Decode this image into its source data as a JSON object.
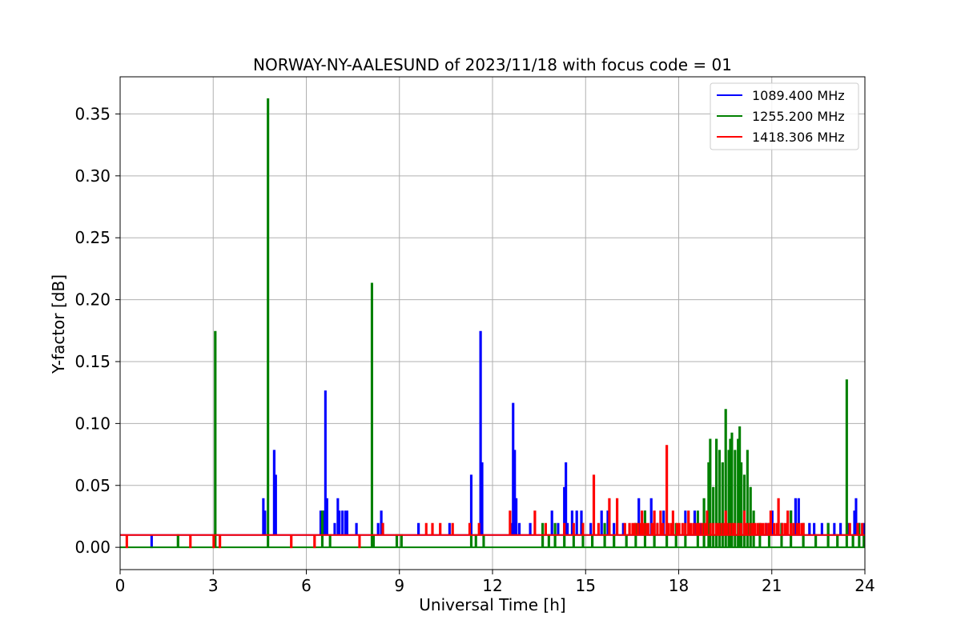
{
  "chart_data": {
    "type": "line",
    "title": "NORWAY-NY-AALESUND of 2023/11/18 with focus code = 01",
    "xlabel": "Universal Time [h]",
    "ylabel": "Y-factor [dB]",
    "xlim": [
      0,
      24
    ],
    "ylim": [
      -0.018,
      0.38
    ],
    "xticks": [
      0,
      3,
      6,
      9,
      12,
      15,
      18,
      21,
      24
    ],
    "xtick_labels": [
      "0",
      "3",
      "6",
      "9",
      "12",
      "15",
      "18",
      "21",
      "24"
    ],
    "yticks": [
      0.0,
      0.05,
      0.1,
      0.15,
      0.2,
      0.25,
      0.3,
      0.35
    ],
    "ytick_labels": [
      "0.00",
      "0.05",
      "0.10",
      "0.15",
      "0.20",
      "0.25",
      "0.30",
      "0.35"
    ],
    "grid": true,
    "legend_position": "top-right",
    "series": [
      {
        "name": "1089.400 MHz",
        "color": "#0000ff",
        "baseline": 0.01,
        "spikes": [
          [
            1.0,
            0.0
          ],
          [
            4.6,
            0.039
          ],
          [
            4.65,
            0.029
          ],
          [
            4.95,
            0.078
          ],
          [
            5.0,
            0.058
          ],
          [
            6.45,
            0.029
          ],
          [
            6.55,
            0.029
          ],
          [
            6.6,
            0.126
          ],
          [
            6.65,
            0.039
          ],
          [
            6.9,
            0.019
          ],
          [
            7.0,
            0.039
          ],
          [
            7.05,
            0.029
          ],
          [
            7.15,
            0.029
          ],
          [
            7.25,
            0.029
          ],
          [
            7.3,
            0.029
          ],
          [
            7.6,
            0.019
          ],
          [
            8.3,
            0.019
          ],
          [
            8.4,
            0.029
          ],
          [
            8.45,
            0.019
          ],
          [
            9.6,
            0.019
          ],
          [
            10.6,
            0.019
          ],
          [
            11.3,
            0.058
          ],
          [
            11.6,
            0.174
          ],
          [
            11.65,
            0.068
          ],
          [
            12.6,
            0.019
          ],
          [
            12.65,
            0.116
          ],
          [
            12.7,
            0.078
          ],
          [
            12.75,
            0.039
          ],
          [
            12.85,
            0.019
          ],
          [
            13.2,
            0.019
          ],
          [
            13.9,
            0.029
          ],
          [
            14.1,
            0.019
          ],
          [
            14.3,
            0.048
          ],
          [
            14.35,
            0.068
          ],
          [
            14.4,
            0.019
          ],
          [
            14.55,
            0.029
          ],
          [
            14.7,
            0.029
          ],
          [
            14.85,
            0.029
          ],
          [
            15.15,
            0.019
          ],
          [
            15.5,
            0.029
          ],
          [
            15.7,
            0.029
          ],
          [
            15.9,
            0.019
          ],
          [
            16.2,
            0.019
          ],
          [
            16.7,
            0.039
          ],
          [
            16.9,
            0.029
          ],
          [
            17.1,
            0.039
          ],
          [
            17.3,
            0.019
          ],
          [
            17.5,
            0.029
          ],
          [
            18.2,
            0.029
          ],
          [
            18.5,
            0.029
          ],
          [
            18.7,
            0.019
          ],
          [
            19.0,
            0.019
          ],
          [
            19.4,
            0.019
          ],
          [
            19.7,
            0.029
          ],
          [
            20.1,
            0.019
          ],
          [
            20.4,
            0.019
          ],
          [
            20.8,
            0.019
          ],
          [
            21.0,
            0.029
          ],
          [
            21.3,
            0.019
          ],
          [
            21.6,
            0.029
          ],
          [
            21.75,
            0.039
          ],
          [
            21.85,
            0.039
          ],
          [
            22.2,
            0.019
          ],
          [
            22.35,
            0.019
          ],
          [
            22.6,
            0.019
          ],
          [
            22.8,
            0.019
          ],
          [
            23.0,
            0.019
          ],
          [
            23.2,
            0.019
          ],
          [
            23.45,
            0.019
          ],
          [
            23.65,
            0.029
          ],
          [
            23.7,
            0.039
          ],
          [
            23.8,
            0.019
          ],
          [
            23.95,
            0.019
          ]
        ]
      },
      {
        "name": "1255.200 MHz",
        "color": "#008000",
        "baseline": 0.0,
        "spikes": [
          [
            1.85,
            0.01
          ],
          [
            3.05,
            0.174
          ],
          [
            4.75,
            0.362
          ],
          [
            6.5,
            0.029
          ],
          [
            6.75,
            0.01
          ],
          [
            8.1,
            0.213
          ],
          [
            8.15,
            0.01
          ],
          [
            8.9,
            0.01
          ],
          [
            9.05,
            0.01
          ],
          [
            11.3,
            0.01
          ],
          [
            11.45,
            0.01
          ],
          [
            11.7,
            0.01
          ],
          [
            13.6,
            0.019
          ],
          [
            13.8,
            0.01
          ],
          [
            14.0,
            0.019
          ],
          [
            14.3,
            0.01
          ],
          [
            14.6,
            0.01
          ],
          [
            14.9,
            0.019
          ],
          [
            15.2,
            0.01
          ],
          [
            15.6,
            0.019
          ],
          [
            15.9,
            0.01
          ],
          [
            16.3,
            0.01
          ],
          [
            16.6,
            0.019
          ],
          [
            16.9,
            0.029
          ],
          [
            17.2,
            0.019
          ],
          [
            17.6,
            0.01
          ],
          [
            17.9,
            0.019
          ],
          [
            18.2,
            0.019
          ],
          [
            18.6,
            0.029
          ],
          [
            18.8,
            0.039
          ],
          [
            18.95,
            0.068
          ],
          [
            19.0,
            0.087
          ],
          [
            19.1,
            0.048
          ],
          [
            19.2,
            0.087
          ],
          [
            19.3,
            0.078
          ],
          [
            19.4,
            0.068
          ],
          [
            19.5,
            0.111
          ],
          [
            19.6,
            0.078
          ],
          [
            19.65,
            0.087
          ],
          [
            19.7,
            0.092
          ],
          [
            19.8,
            0.078
          ],
          [
            19.9,
            0.087
          ],
          [
            19.95,
            0.097
          ],
          [
            20.0,
            0.068
          ],
          [
            20.1,
            0.058
          ],
          [
            20.2,
            0.078
          ],
          [
            20.3,
            0.048
          ],
          [
            20.4,
            0.029
          ],
          [
            20.6,
            0.019
          ],
          [
            20.9,
            0.019
          ],
          [
            21.3,
            0.019
          ],
          [
            21.6,
            0.029
          ],
          [
            22.0,
            0.019
          ],
          [
            22.4,
            0.01
          ],
          [
            22.8,
            0.019
          ],
          [
            23.1,
            0.01
          ],
          [
            23.4,
            0.135
          ],
          [
            23.6,
            0.01
          ],
          [
            23.8,
            0.019
          ],
          [
            23.95,
            0.01
          ]
        ]
      },
      {
        "name": "1418.306 MHz",
        "color": "#ff0000",
        "baseline": 0.01,
        "spikes": [
          [
            0.2,
            0.0
          ],
          [
            2.25,
            0.0
          ],
          [
            3.0,
            0.0
          ],
          [
            3.2,
            0.0
          ],
          [
            5.5,
            0.0
          ],
          [
            6.25,
            0.0
          ],
          [
            7.7,
            0.0
          ],
          [
            8.45,
            0.019
          ],
          [
            9.85,
            0.019
          ],
          [
            10.05,
            0.019
          ],
          [
            10.3,
            0.019
          ],
          [
            10.7,
            0.019
          ],
          [
            11.25,
            0.019
          ],
          [
            11.55,
            0.019
          ],
          [
            12.55,
            0.029
          ],
          [
            13.35,
            0.029
          ],
          [
            13.7,
            0.019
          ],
          [
            14.3,
            0.019
          ],
          [
            14.6,
            0.019
          ],
          [
            14.9,
            0.019
          ],
          [
            15.25,
            0.058
          ],
          [
            15.4,
            0.019
          ],
          [
            15.75,
            0.039
          ],
          [
            16.0,
            0.039
          ],
          [
            16.25,
            0.019
          ],
          [
            16.5,
            0.019
          ],
          [
            16.8,
            0.029
          ],
          [
            17.0,
            0.019
          ],
          [
            17.2,
            0.029
          ],
          [
            17.4,
            0.029
          ],
          [
            17.6,
            0.082
          ],
          [
            17.8,
            0.029
          ],
          [
            18.0,
            0.019
          ],
          [
            18.3,
            0.029
          ],
          [
            18.6,
            0.019
          ],
          [
            18.9,
            0.029
          ],
          [
            19.2,
            0.019
          ],
          [
            19.5,
            0.029
          ],
          [
            19.8,
            0.019
          ],
          [
            20.1,
            0.029
          ],
          [
            20.4,
            0.019
          ],
          [
            20.7,
            0.019
          ],
          [
            20.95,
            0.029
          ],
          [
            21.2,
            0.039
          ],
          [
            21.5,
            0.029
          ],
          [
            21.8,
            0.019
          ],
          [
            22.0,
            0.019
          ],
          [
            23.5,
            0.019
          ],
          [
            23.75,
            0.019
          ],
          [
            23.9,
            0.019
          ]
        ],
        "dense_ranges": [
          [
            16.4,
            20.7,
            0.019
          ],
          [
            20.7,
            22.0,
            0.019
          ]
        ]
      }
    ]
  }
}
